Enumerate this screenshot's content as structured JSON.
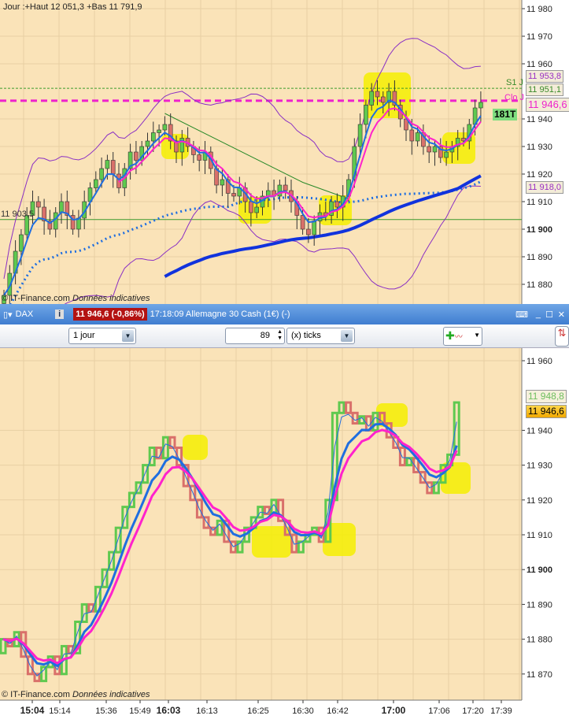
{
  "header": {
    "day_info": "Jour :+Haut 12 051,3 +Bas 11 791,9"
  },
  "upper": {
    "labels": {
      "s1": "S1 J",
      "clo": "Clo J",
      "p1": "11 953,8",
      "p2": "11 951,1",
      "ticks": "181T",
      "last": "11 946,6",
      "p3": "11 918,0",
      "left": "11 903,5"
    },
    "copyright": "© IT-Finance.com",
    "copyright_note": "Données indicatives"
  },
  "bar": {
    "symbol": "DAX",
    "info_icon": "i",
    "price": "11 946,6 (-0,86%)",
    "time_name": "17:18:09 Allemagne 30 Cash (1€) (-)"
  },
  "toolbar": {
    "period": "1 jour",
    "count": "89",
    "unit": "(x) ticks"
  },
  "lower": {
    "labels": {
      "p1": "11 948,8",
      "last": "11 946,6"
    },
    "copyright": "© IT-Finance.com",
    "copyright_note": "Données indicatives"
  },
  "colors": {
    "bg": "#fae3b8",
    "up": "#5fc94f",
    "down": "#d9706a",
    "bb": "#8a2fc4",
    "ma_fast": "#1f6ee0",
    "ma_slow": "#ff22cc",
    "highlight": "#f5ef00",
    "header": "#3f7dd0"
  },
  "chart_data": [
    {
      "type": "candlestick",
      "ylim": [
        11875,
        11983
      ],
      "y_ticks": [
        "11 980",
        "11 970",
        "11 960",
        "11 940",
        "11 930",
        "11 920",
        "11 910",
        "11 900",
        "11 890",
        "11 880"
      ],
      "closes": [
        11876,
        11884,
        11892,
        11898,
        11905,
        11910,
        11908,
        11903,
        11900,
        11906,
        11910,
        11905,
        11900,
        11904,
        11910,
        11915,
        11918,
        11922,
        11925,
        11920,
        11915,
        11922,
        11928,
        11925,
        11930,
        11932,
        11935,
        11936,
        11938,
        11932,
        11928,
        11933,
        11930,
        11927,
        11925,
        11928,
        11922,
        11916,
        11918,
        11913,
        11912,
        11915,
        11910,
        11906,
        11908,
        11912,
        11914,
        11912,
        11916,
        11914,
        11910,
        11905,
        11900,
        11898,
        11903,
        11906,
        11905,
        11910,
        11908,
        11912,
        11918,
        11930,
        11938,
        11945,
        11950,
        11948,
        11946,
        11950,
        11945,
        11940,
        11936,
        11932,
        11935,
        11930,
        11928,
        11930,
        11926,
        11928,
        11930,
        11933,
        11932,
        11938,
        11944,
        11946
      ],
      "levels": {
        "S1 J": 11951.1,
        "Clo J": 11946.6
      }
    },
    {
      "type": "step",
      "ylim": [
        11865,
        11963
      ],
      "y_ticks": [
        "11 960",
        "11 940",
        "11 930",
        "11 920",
        "11 910",
        "11 900",
        "11 890",
        "11 880",
        "11 870"
      ],
      "x_ticks": [
        "15:04",
        "15:14",
        "15:36",
        "15:49",
        "16:03",
        "16:13",
        "16:25",
        "16:30",
        "16:42",
        "17:00",
        "17:06",
        "17:20",
        "17:39"
      ],
      "values": [
        11880,
        11878,
        11882,
        11875,
        11870,
        11868,
        11872,
        11875,
        11870,
        11878,
        11876,
        11885,
        11890,
        11888,
        11895,
        11900,
        11905,
        11912,
        11918,
        11922,
        11925,
        11930,
        11935,
        11932,
        11938,
        11935,
        11930,
        11924,
        11920,
        11915,
        11912,
        11910,
        11914,
        11908,
        11905,
        11908,
        11912,
        11915,
        11918,
        11916,
        11920,
        11914,
        11910,
        11905,
        11908,
        11910,
        11912,
        11908,
        11920,
        11945,
        11948,
        11945,
        11942,
        11944,
        11940,
        11945,
        11942,
        11938,
        11935,
        11930,
        11932,
        11928,
        11925,
        11922,
        11925,
        11930,
        11933,
        11948
      ]
    }
  ]
}
